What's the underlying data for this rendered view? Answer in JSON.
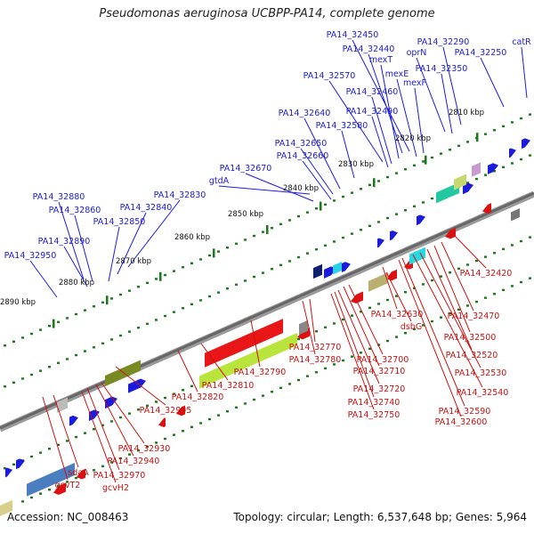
{
  "title": "Pseudomonas aeruginosa UCBPP-PA14, complete genome",
  "footer": {
    "accession": "Accession: NC_008463",
    "summary": "Topology: circular; Length: 6,537,648 bp; Genes: 5,964"
  },
  "colors": {
    "forward_gene": "#1b1bdc",
    "reverse_gene": "#dd1111",
    "backbone": "#666666",
    "tick": "#1a7a1a",
    "label_forward": "#1b1bdc",
    "label_reverse": "#cc1111"
  },
  "kbp_marks": [
    "2810 kbp",
    "2820 kbp",
    "2830 kbp",
    "2840 kbp",
    "2850 kbp",
    "2860 kbp",
    "2870 kbp",
    "2880 kbp",
    "2890 kbp"
  ],
  "top_labels": [
    "PA14_32450",
    "PA14_32290",
    "catR",
    "PA14_32440",
    "oprN",
    "PA14_32250",
    "mexT",
    "PA14_32350",
    "PA14_32570",
    "mexE",
    "mexF",
    "PA14_32460",
    "PA14_32490",
    "PA14_32640",
    "PA14_32580",
    "PA14_32650",
    "PA14_32660",
    "PA14_32670",
    "gtdA",
    "PA14_32880",
    "PA14_32830",
    "PA14_32860",
    "PA14_32840",
    "PA14_32850",
    "PA14_32890",
    "PA14_32950"
  ],
  "bottom_labels": [
    "PA14_32420",
    "PA14_32630",
    "dsbG",
    "PA14_32470",
    "PA14_32500",
    "PA14_32520",
    "PA14_32530",
    "PA14_32540",
    "PA14_32590",
    "PA14_32600",
    "PA14_32770",
    "PA14_32780",
    "PA14_32700",
    "PA14_32710",
    "PA14_32720",
    "PA14_32740",
    "PA14_32750",
    "PA14_32790",
    "PA14_32810",
    "PA14_32820",
    "PA14_32905",
    "PA14_32930",
    "PA14_32940",
    "PA14_32970",
    "sdaA",
    "gcvT2",
    "gcvH2"
  ]
}
